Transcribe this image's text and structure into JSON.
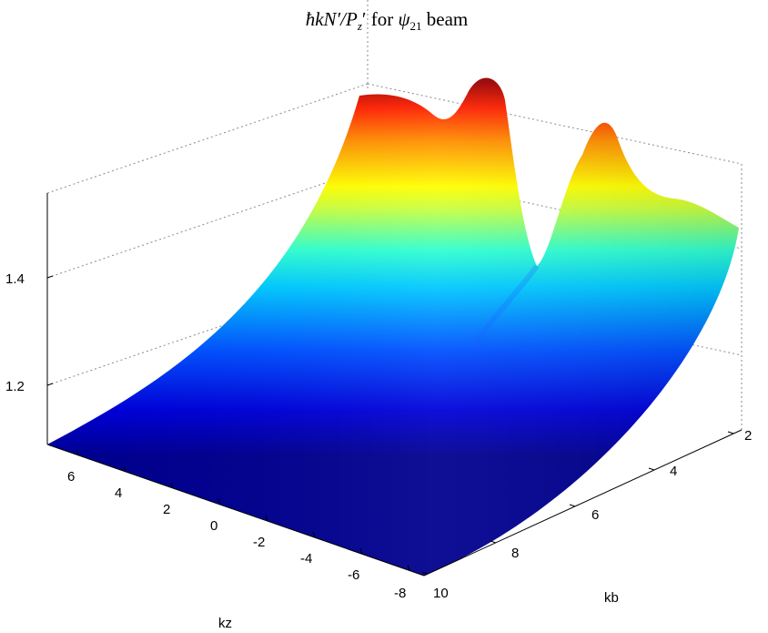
{
  "chart_data": {
    "type": "surface",
    "title": {
      "prefix": "ħkN′/P",
      "prefix_sub": "z",
      "prefix_tail": "′ for ",
      "psi": "ψ",
      "psi_sub": "21",
      "suffix": " beam"
    },
    "xlabel": "kz",
    "ylabel": "kb",
    "zlabel": "",
    "kz_ticks": [
      "6",
      "4",
      "2",
      "0",
      "-2",
      "-4",
      "-6",
      "-8"
    ],
    "kb_ticks": [
      "2",
      "4",
      "6",
      "8",
      "10"
    ],
    "z_ticks": [
      "1.2",
      "1.4"
    ],
    "xlim": [
      -8,
      8
    ],
    "ylim": [
      2,
      10
    ],
    "zlim": [
      1.1,
      1.58
    ],
    "grid": true,
    "colormap": "jet",
    "surface_profile": {
      "kb": [
        2,
        3,
        4,
        5,
        6,
        7,
        8,
        9,
        10
      ],
      "z_at_kz_min": [
        1.1,
        1.1,
        1.1,
        1.1,
        1.1,
        1.1,
        1.1,
        1.1,
        1.1
      ],
      "z_at_kz_max": [
        1.5,
        1.46,
        1.4,
        1.34,
        1.28,
        1.23,
        1.18,
        1.14,
        1.1
      ]
    },
    "peaks": [
      {
        "kb": 2.5,
        "kz": 8,
        "z": 1.53
      },
      {
        "kb": 3.9,
        "kz": 8,
        "z": 1.57
      },
      {
        "kb": 4.6,
        "kz": 8,
        "z": 1.36
      },
      {
        "kb": 5.9,
        "kz": 8,
        "z": 1.58
      },
      {
        "kb": 6.7,
        "kz": 8,
        "z": 1.52
      }
    ]
  }
}
